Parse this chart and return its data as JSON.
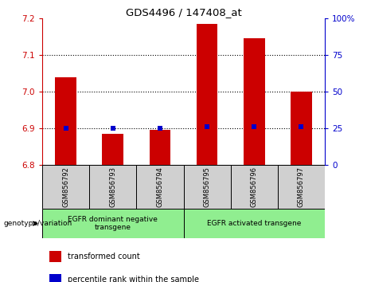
{
  "title": "GDS4496 / 147408_at",
  "samples": [
    "GSM856792",
    "GSM856793",
    "GSM856794",
    "GSM856795",
    "GSM856796",
    "GSM856797"
  ],
  "transformed_counts": [
    7.04,
    6.885,
    6.895,
    7.185,
    7.145,
    7.0
  ],
  "percentile_ranks_value": [
    6.9,
    6.9,
    6.9,
    6.905,
    6.905,
    6.905
  ],
  "ylim": [
    6.8,
    7.2
  ],
  "yticks_left": [
    6.8,
    6.9,
    7.0,
    7.1,
    7.2
  ],
  "yticks_right": [
    0,
    25,
    50,
    75,
    100
  ],
  "yticks_right_vals": [
    6.8,
    6.9,
    7.0,
    7.1,
    7.2
  ],
  "bar_color": "#cc0000",
  "marker_color": "#0000cc",
  "bar_bottom": 6.8,
  "group_labels": [
    "EGFR dominant negative\ntransgene",
    "EGFR activated transgene"
  ],
  "group_ranges": [
    [
      0,
      2
    ],
    [
      3,
      5
    ]
  ],
  "group_color": "#90ee90",
  "legend_items": [
    {
      "color": "#cc0000",
      "label": "transformed count"
    },
    {
      "color": "#0000cc",
      "label": "percentile rank within the sample"
    }
  ],
  "genotype_label": "genotype/variation",
  "left_axis_color": "#cc0000",
  "right_axis_color": "#0000cc",
  "bg_color": "#d0d0d0",
  "plot_bg": "white",
  "fig_width": 4.61,
  "fig_height": 3.54,
  "dpi": 100
}
